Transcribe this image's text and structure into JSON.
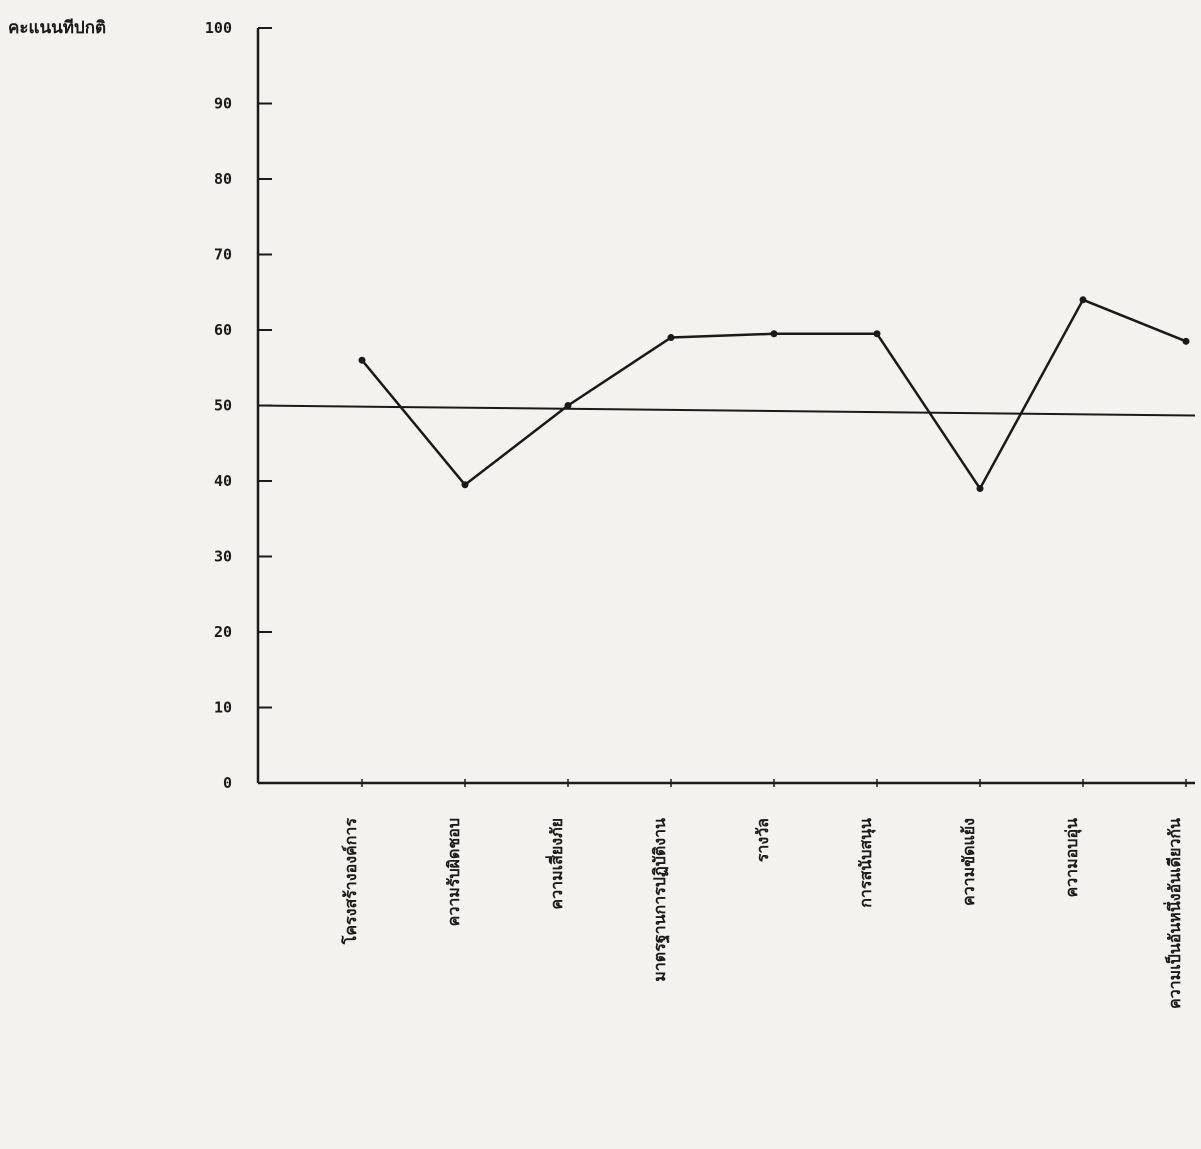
{
  "chart_data": {
    "type": "line",
    "ylabel": "คะแนนทีปกติ",
    "ylim": [
      0,
      100
    ],
    "yticks": [
      0,
      10,
      20,
      30,
      40,
      50,
      60,
      70,
      80,
      90,
      100
    ],
    "reference_line": 50,
    "categories": [
      "โครงสร้างองค์การ",
      "ความรับผิดชอบ",
      "ความเสี่ยงภัย",
      "มาตรฐานการปฏิบัติงาน",
      "รางวัล",
      "การสนับสนุน",
      "ความขัดแย้ง",
      "ความอบอุ่น",
      "ความเป็นอันหนึ่งอันเดียวกัน"
    ],
    "series": [
      {
        "values": [
          56,
          39.5,
          50,
          59,
          59.5,
          59.5,
          39,
          64,
          58.5
        ]
      }
    ]
  }
}
